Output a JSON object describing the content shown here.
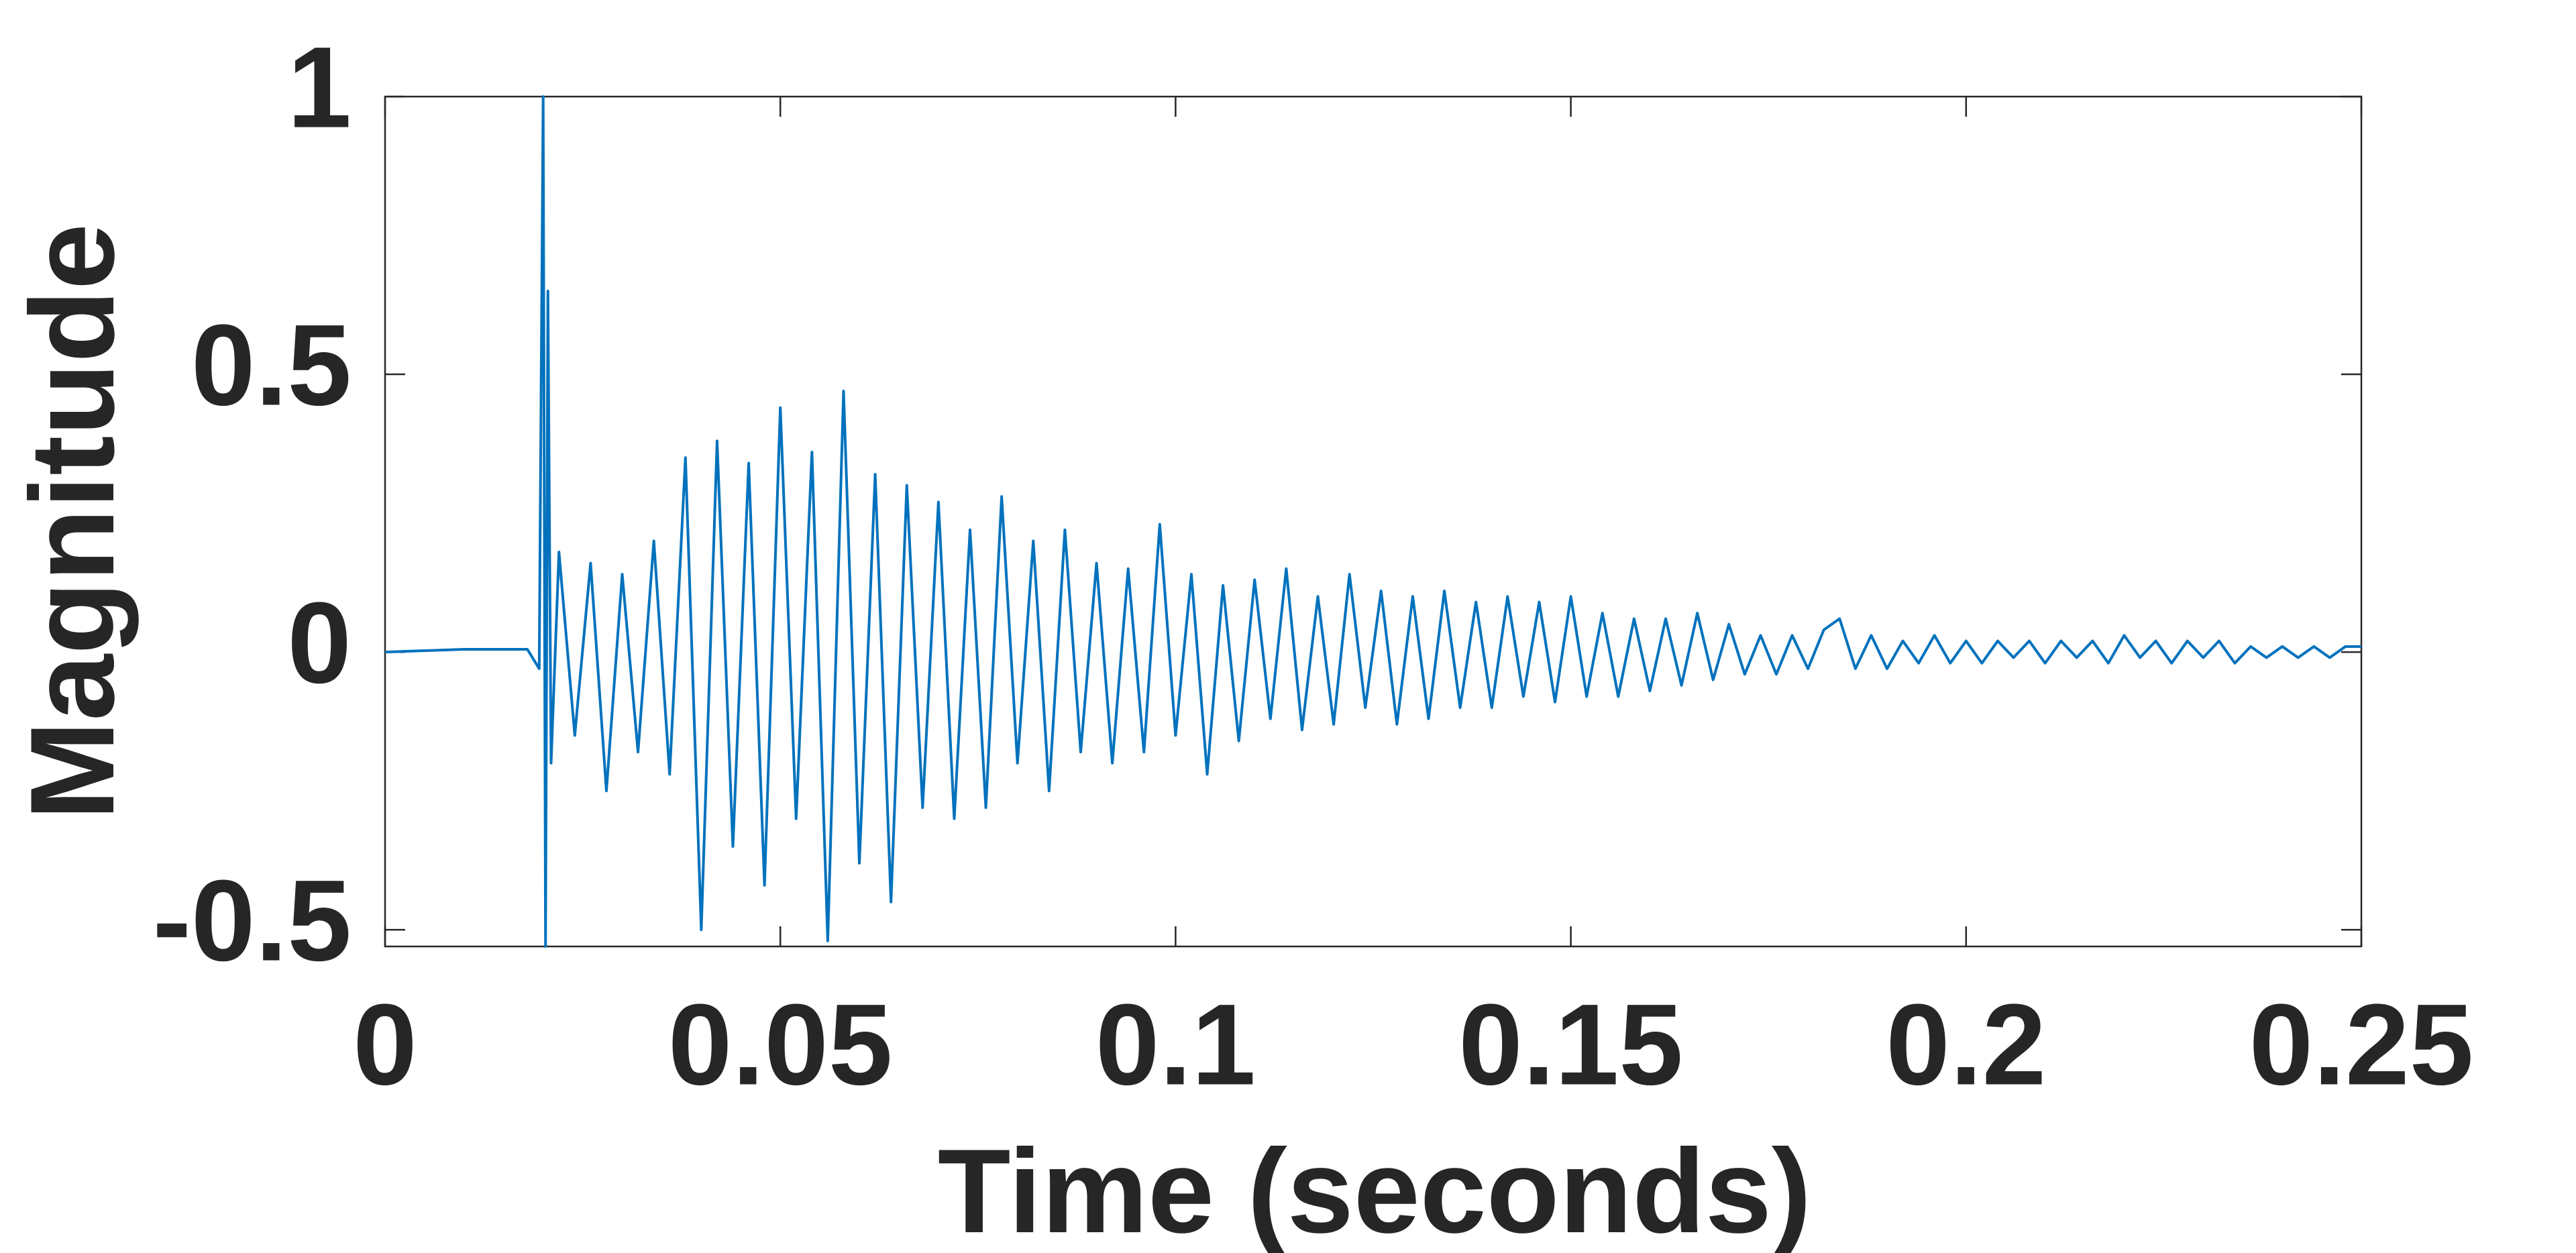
{
  "chart_data": {
    "type": "line",
    "xlabel": "Time (seconds)",
    "ylabel": "Magnitude",
    "color": "#0072bd",
    "xlim": [
      0,
      0.25
    ],
    "ylim": [
      -0.53,
      1
    ],
    "xticks": [
      0,
      0.05,
      0.1,
      0.15,
      0.2,
      0.25
    ],
    "yticks": [
      -0.5,
      0,
      0.5,
      1
    ],
    "grid": false,
    "x": [
      0,
      0.01,
      0.018,
      0.0195,
      0.02,
      0.0203,
      0.0206,
      0.021,
      0.022,
      0.024,
      0.026,
      0.028,
      0.03,
      0.032,
      0.034,
      0.036,
      0.038,
      0.04,
      0.042,
      0.044,
      0.046,
      0.048,
      0.05,
      0.052,
      0.054,
      0.056,
      0.058,
      0.06,
      0.062,
      0.064,
      0.066,
      0.068,
      0.07,
      0.072,
      0.074,
      0.076,
      0.078,
      0.08,
      0.082,
      0.084,
      0.086,
      0.088,
      0.09,
      0.092,
      0.094,
      0.096,
      0.098,
      0.1,
      0.102,
      0.104,
      0.106,
      0.108,
      0.11,
      0.112,
      0.114,
      0.116,
      0.118,
      0.12,
      0.122,
      0.124,
      0.126,
      0.128,
      0.13,
      0.132,
      0.134,
      0.136,
      0.138,
      0.14,
      0.142,
      0.144,
      0.146,
      0.148,
      0.15,
      0.152,
      0.154,
      0.156,
      0.158,
      0.16,
      0.162,
      0.164,
      0.166,
      0.168,
      0.17,
      0.172,
      0.174,
      0.176,
      0.178,
      0.18,
      0.182,
      0.184,
      0.186,
      0.188,
      0.19,
      0.192,
      0.194,
      0.196,
      0.198,
      0.2,
      0.202,
      0.204,
      0.206,
      0.208,
      0.21,
      0.212,
      0.214,
      0.216,
      0.218,
      0.22,
      0.222,
      0.224,
      0.226,
      0.228,
      0.23,
      0.232,
      0.234,
      0.236,
      0.238,
      0.24,
      0.242,
      0.244,
      0.246,
      0.248,
      0.25
    ],
    "values": [
      0.0,
      0.005,
      0.005,
      -0.03,
      1.0,
      -0.53,
      0.65,
      -0.2,
      0.18,
      -0.15,
      0.16,
      -0.25,
      0.14,
      -0.18,
      0.2,
      -0.22,
      0.35,
      -0.5,
      0.38,
      -0.35,
      0.34,
      -0.42,
      0.44,
      -0.3,
      0.36,
      -0.52,
      0.47,
      -0.38,
      0.32,
      -0.45,
      0.3,
      -0.28,
      0.27,
      -0.3,
      0.22,
      -0.28,
      0.28,
      -0.2,
      0.2,
      -0.25,
      0.22,
      -0.18,
      0.16,
      -0.2,
      0.15,
      -0.18,
      0.23,
      -0.15,
      0.14,
      -0.22,
      0.12,
      -0.16,
      0.13,
      -0.12,
      0.15,
      -0.14,
      0.1,
      -0.13,
      0.14,
      -0.1,
      0.11,
      -0.13,
      0.1,
      -0.12,
      0.11,
      -0.1,
      0.09,
      -0.1,
      0.1,
      -0.08,
      0.09,
      -0.09,
      0.1,
      -0.08,
      0.07,
      -0.08,
      0.06,
      -0.07,
      0.06,
      -0.06,
      0.07,
      -0.05,
      0.05,
      -0.04,
      0.03,
      -0.04,
      0.03,
      -0.03,
      0.04,
      0.06,
      -0.03,
      0.03,
      -0.03,
      0.02,
      -0.02,
      0.03,
      -0.02,
      0.02,
      -0.02,
      0.02,
      -0.01,
      0.02,
      -0.02,
      0.02,
      -0.01,
      0.02,
      -0.02,
      0.03,
      -0.01,
      0.02,
      -0.02,
      0.02,
      -0.01,
      0.02,
      -0.02,
      0.01,
      -0.01,
      0.01,
      -0.01,
      0.01,
      -0.01,
      0.01,
      0.01
    ]
  }
}
